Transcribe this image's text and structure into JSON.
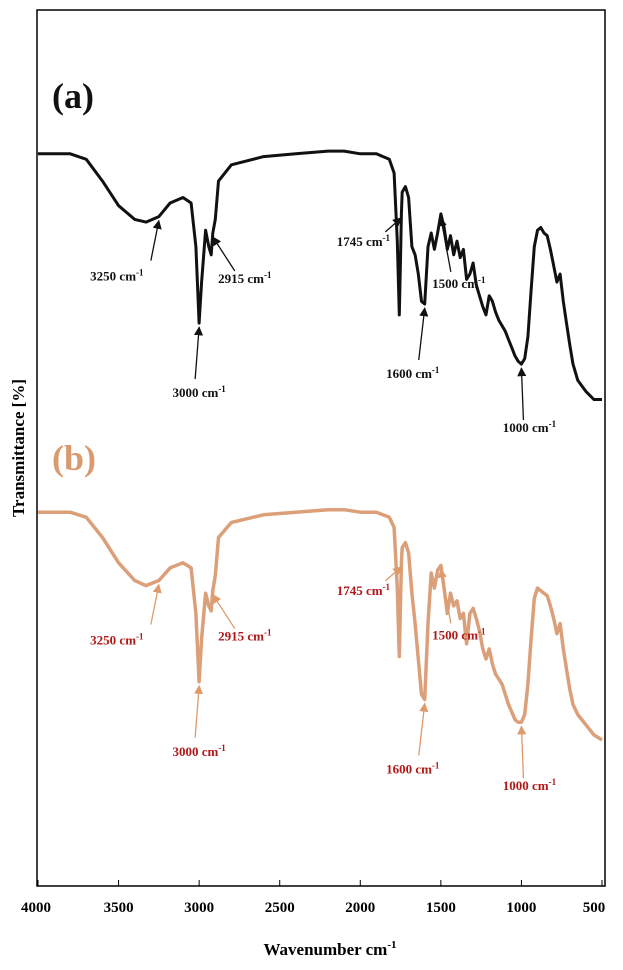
{
  "chart_data": {
    "type": "line",
    "xlabel": "Wavenumber cm",
    "xlabel_sup": "-1",
    "ylabel": "Transmittance [%]",
    "xlim": [
      4000,
      500
    ],
    "x_reversed": true,
    "grid": false,
    "x_ticks": [
      "4000",
      "3500",
      "3000",
      "2500",
      "2000",
      "1500",
      "1000",
      "500"
    ],
    "colors": {
      "a": "#111111",
      "b": "#dba07a",
      "b_labels": "#b01818"
    },
    "series": [
      {
        "key": "a",
        "panel_label": "(a)",
        "x": [
          4000,
          3800,
          3700,
          3600,
          3500,
          3400,
          3330,
          3250,
          3180,
          3100,
          3050,
          3020,
          3000,
          2985,
          2960,
          2940,
          2925,
          2915,
          2900,
          2880,
          2800,
          2600,
          2400,
          2200,
          2100,
          2000,
          1900,
          1820,
          1790,
          1770,
          1758,
          1750,
          1745,
          1740,
          1720,
          1700,
          1680,
          1660,
          1640,
          1620,
          1600,
          1580,
          1560,
          1540,
          1520,
          1500,
          1480,
          1460,
          1440,
          1420,
          1400,
          1380,
          1360,
          1340,
          1320,
          1300,
          1280,
          1260,
          1240,
          1220,
          1200,
          1180,
          1160,
          1140,
          1120,
          1100,
          1080,
          1060,
          1040,
          1020,
          1000,
          980,
          960,
          940,
          920,
          900,
          880,
          860,
          840,
          820,
          800,
          780,
          760,
          740,
          720,
          700,
          680,
          650,
          600,
          550,
          500
        ],
        "y": [
          92,
          92,
          90,
          82,
          73,
          68,
          67,
          69,
          74,
          76,
          74,
          58,
          30,
          45,
          64,
          58,
          55,
          63,
          68,
          82,
          88,
          91,
          92,
          93,
          93,
          92,
          92,
          90,
          85,
          60,
          33,
          55,
          70,
          78,
          80,
          76,
          58,
          55,
          48,
          38,
          37,
          58,
          63,
          57,
          63,
          70,
          65,
          57,
          62,
          55,
          60,
          54,
          57,
          46,
          48,
          52,
          44,
          40,
          36,
          33,
          40,
          38,
          34,
          31,
          29,
          27,
          24,
          21,
          18,
          16,
          15,
          17,
          25,
          42,
          58,
          64,
          65,
          63,
          62,
          57,
          51,
          45,
          48,
          38,
          30,
          22,
          15,
          9,
          5,
          2,
          2
        ]
      },
      {
        "key": "b",
        "panel_label": "(b)",
        "x": [
          4000,
          3800,
          3700,
          3600,
          3500,
          3400,
          3330,
          3250,
          3180,
          3100,
          3050,
          3020,
          3000,
          2985,
          2960,
          2940,
          2925,
          2915,
          2900,
          2880,
          2800,
          2600,
          2400,
          2200,
          2100,
          2000,
          1900,
          1820,
          1790,
          1770,
          1758,
          1750,
          1745,
          1740,
          1720,
          1700,
          1680,
          1660,
          1640,
          1620,
          1600,
          1580,
          1560,
          1540,
          1520,
          1500,
          1480,
          1460,
          1440,
          1420,
          1400,
          1380,
          1360,
          1340,
          1320,
          1300,
          1280,
          1260,
          1240,
          1220,
          1200,
          1180,
          1160,
          1140,
          1120,
          1100,
          1080,
          1060,
          1040,
          1020,
          1000,
          980,
          960,
          940,
          920,
          900,
          880,
          860,
          840,
          820,
          800,
          780,
          760,
          740,
          720,
          700,
          680,
          650,
          600,
          550,
          500
        ],
        "y": [
          92,
          92,
          90,
          82,
          72,
          65,
          63,
          65,
          70,
          72,
          70,
          52,
          25,
          42,
          60,
          55,
          53,
          61,
          67,
          82,
          88,
          91,
          92,
          93,
          93,
          92,
          92,
          90,
          86,
          62,
          35,
          58,
          72,
          78,
          80,
          76,
          60,
          48,
          34,
          20,
          18,
          48,
          68,
          62,
          69,
          71,
          62,
          52,
          60,
          55,
          57,
          50,
          52,
          40,
          52,
          54,
          50,
          45,
          38,
          34,
          38,
          32,
          28,
          26,
          24,
          20,
          16,
          13,
          10,
          9,
          9,
          12,
          24,
          42,
          58,
          62,
          61,
          60,
          59,
          55,
          50,
          44,
          48,
          38,
          30,
          22,
          16,
          12,
          8,
          4,
          2
        ]
      }
    ],
    "annotations": [
      {
        "series": "a",
        "text": "3250 cm",
        "sup": "-1",
        "x": 3250
      },
      {
        "series": "a",
        "text": "3000 cm",
        "sup": "-1",
        "x": 3000
      },
      {
        "series": "a",
        "text": "2915 cm",
        "sup": "-1",
        "x": 2915
      },
      {
        "series": "a",
        "text": "1745 cm",
        "sup": "-1",
        "x": 1745
      },
      {
        "series": "a",
        "text": "1600 cm",
        "sup": "-1",
        "x": 1600
      },
      {
        "series": "a",
        "text": "1500 cm",
        "sup": "-1",
        "x": 1500
      },
      {
        "series": "a",
        "text": "1000 cm",
        "sup": "-1",
        "x": 1000
      },
      {
        "series": "b",
        "text": "3250 cm",
        "sup": "-1",
        "x": 3250
      },
      {
        "series": "b",
        "text": "3000 cm",
        "sup": "-1",
        "x": 3000
      },
      {
        "series": "b",
        "text": "2915 cm",
        "sup": "-1",
        "x": 2915
      },
      {
        "series": "b",
        "text": "1745 cm",
        "sup": "-1",
        "x": 1745
      },
      {
        "series": "b",
        "text": "1600 cm",
        "sup": "-1",
        "x": 1600
      },
      {
        "series": "b",
        "text": "1500 cm",
        "sup": "-1",
        "x": 1500
      },
      {
        "series": "b",
        "text": "1000 cm",
        "sup": "-1",
        "x": 1000
      }
    ]
  }
}
